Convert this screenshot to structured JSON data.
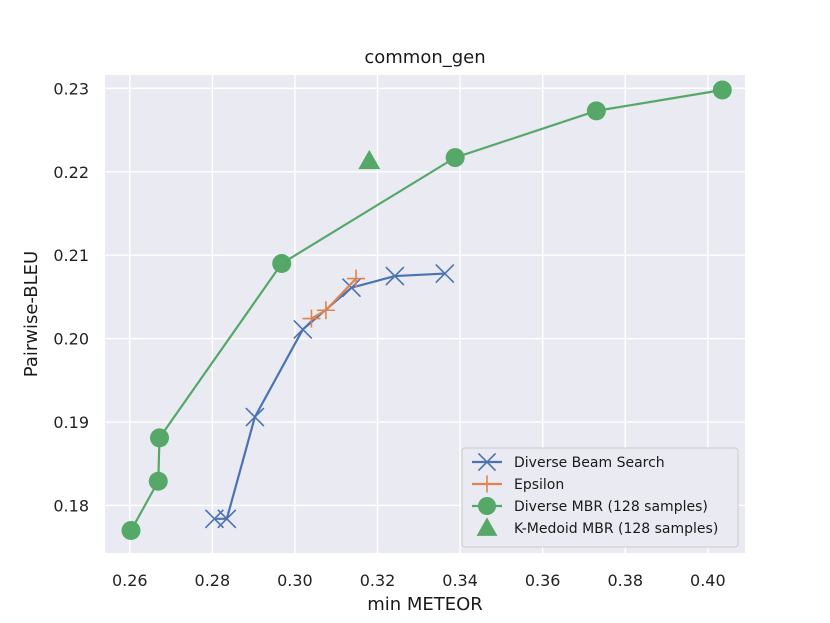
{
  "chart_data": {
    "type": "line",
    "title": "common_gen",
    "xlabel": "min METEOR",
    "ylabel": "Pairwise-BLEU",
    "xlim": [
      0.254,
      0.409
    ],
    "ylim": [
      0.1743,
      0.2316
    ],
    "xticks": [
      0.26,
      0.28,
      0.3,
      0.32,
      0.34,
      0.36,
      0.38,
      0.4
    ],
    "yticks": [
      0.18,
      0.19,
      0.2,
      0.21,
      0.22,
      0.23
    ],
    "grid": true,
    "legend_position": "lower-right",
    "series": [
      {
        "name": "Diverse Beam Search",
        "color": "#4c72b0",
        "marker": "x",
        "x": [
          0.2805,
          0.2835,
          0.2903,
          0.3019,
          0.3137,
          0.3242,
          0.3363
        ],
        "y": [
          0.1784,
          0.1784,
          0.1906,
          0.2011,
          0.2061,
          0.2075,
          0.2078
        ]
      },
      {
        "name": "Epsilon",
        "color": "#dd8452",
        "marker": "+",
        "x": [
          0.304,
          0.3075,
          0.3148
        ],
        "y": [
          0.2024,
          0.2034,
          0.2072
        ]
      },
      {
        "name": "Diverse MBR (128 samples)",
        "color": "#55a868",
        "marker": "o",
        "x": [
          0.2603,
          0.2669,
          0.2672,
          0.2968,
          0.3388,
          0.373,
          0.4035
        ],
        "y": [
          0.177,
          0.1829,
          0.1881,
          0.209,
          0.2217,
          0.2273,
          0.2298
        ]
      },
      {
        "name": "K-Medoid MBR (128 samples)",
        "color": "#55a868",
        "marker": "^",
        "line": false,
        "x": [
          0.318
        ],
        "y": [
          0.2213
        ]
      }
    ]
  }
}
